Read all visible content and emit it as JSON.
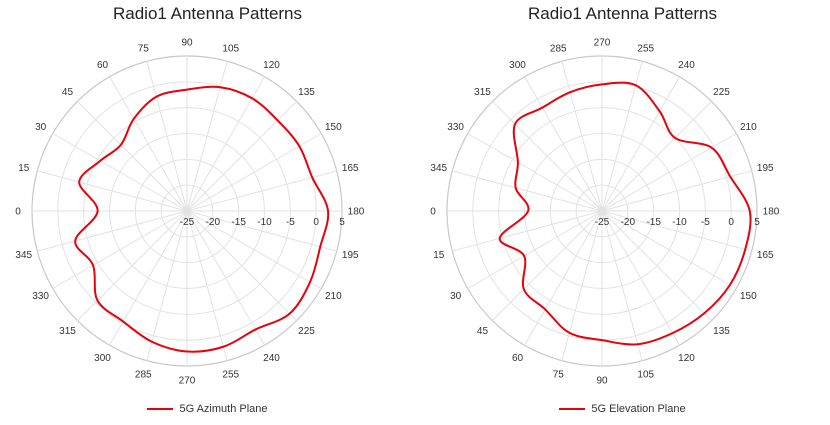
{
  "chart_data": [
    {
      "type": "polar",
      "title": "Radio1 Antenna Patterns",
      "series": [
        {
          "name": "5G Azimuth Plane",
          "color": "#e8000b"
        }
      ],
      "angular_ticks": [
        "0",
        "15",
        "30",
        "45",
        "60",
        "75",
        "90",
        "105",
        "120",
        "135",
        "150",
        "165",
        "180",
        "195",
        "210",
        "225",
        "240",
        "255",
        "270",
        "285",
        "300",
        "315",
        "330",
        "345"
      ],
      "angular_direction": "clockwise",
      "zero_position": "left",
      "radial_ticks": [
        "-25",
        "-20",
        "-15",
        "-10",
        "-5",
        "0",
        "5"
      ],
      "radial_range": [
        -25,
        5
      ],
      "grid": true,
      "legend_position": "bottom",
      "points": [
        [
          0,
          -7.7
        ],
        [
          15,
          -3.4
        ],
        [
          30,
          -5.6
        ],
        [
          45,
          -6.9
        ],
        [
          60,
          -4.4
        ],
        [
          75,
          -2.1
        ],
        [
          90,
          -1.5
        ],
        [
          105,
          -0.2
        ],
        [
          120,
          0.2
        ],
        [
          135,
          -0.2
        ],
        [
          150,
          0.1
        ],
        [
          165,
          0.1
        ],
        [
          180,
          2.3
        ],
        [
          195,
          1.7
        ],
        [
          210,
          2.5
        ],
        [
          225,
          3.1
        ],
        [
          240,
          1.5
        ],
        [
          255,
          2.2
        ],
        [
          270,
          2.2
        ],
        [
          285,
          1.2
        ],
        [
          300,
          -0.3
        ],
        [
          315,
          -0.5
        ],
        [
          330,
          -4.0
        ],
        [
          345,
          -2.6
        ]
      ]
    },
    {
      "type": "polar",
      "title": "Radio1 Antenna Patterns",
      "series": [
        {
          "name": "5G Elevation Plane",
          "color": "#e8000b"
        }
      ],
      "angular_ticks": [
        "0",
        "15",
        "30",
        "45",
        "60",
        "75",
        "90",
        "105",
        "120",
        "135",
        "150",
        "165",
        "180",
        "195",
        "210",
        "225",
        "240",
        "255",
        "270",
        "285",
        "300",
        "315",
        "330",
        "345"
      ],
      "angular_direction": "counterclockwise",
      "zero_position": "left",
      "radial_ticks": [
        "-25",
        "-20",
        "-15",
        "-10",
        "-5",
        "0",
        "5"
      ],
      "radial_range": [
        -25,
        5
      ],
      "grid": true,
      "legend_position": "bottom",
      "points": [
        [
          0,
          -10.7
        ],
        [
          15,
          -4.5
        ],
        [
          30,
          -7.6
        ],
        [
          45,
          -3.6
        ],
        [
          60,
          -3.0
        ],
        [
          75,
          -0.6
        ],
        [
          90,
          0.0
        ],
        [
          105,
          1.7
        ],
        [
          120,
          2.3
        ],
        [
          135,
          3.0
        ],
        [
          150,
          3.6
        ],
        [
          165,
          3.7
        ],
        [
          180,
          3.6
        ],
        [
          195,
          0.7
        ],
        [
          210,
          -0.5
        ],
        [
          225,
          -5.0
        ],
        [
          240,
          -2.7
        ],
        [
          255,
          0.2
        ],
        [
          270,
          -0.5
        ],
        [
          285,
          -1.2
        ],
        [
          300,
          -1.9
        ],
        [
          315,
          -1.2
        ],
        [
          330,
          -6.2
        ],
        [
          345,
          -7.7
        ]
      ]
    }
  ]
}
